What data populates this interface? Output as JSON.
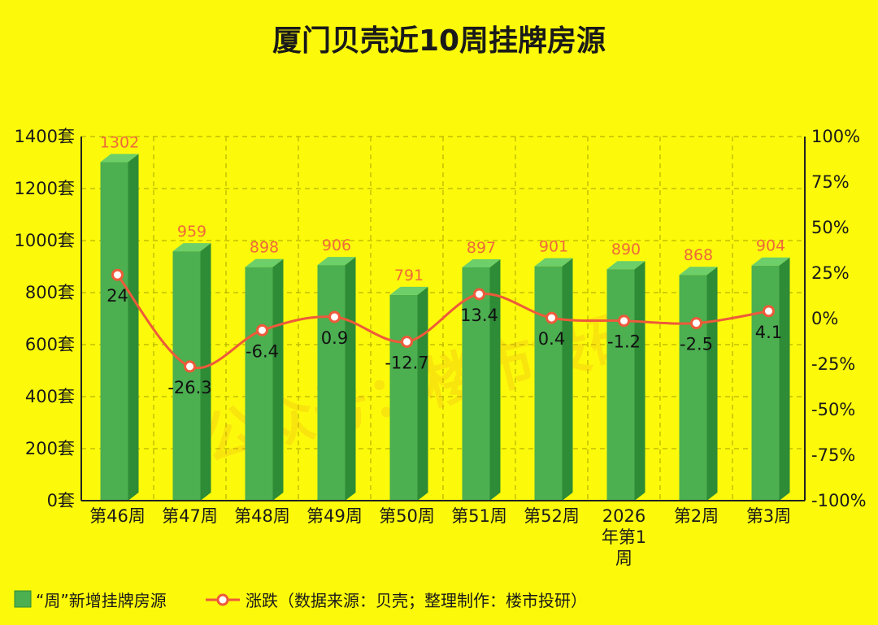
{
  "chart_data": {
    "type": "bar",
    "title": "厦门贝壳近10周挂牌房源",
    "categories": [
      "第46周",
      "第47周",
      "第48周",
      "第49周",
      "第50周",
      "第51周",
      "第52周",
      "2026年第1周",
      "第2周",
      "第3周"
    ],
    "category_lines": [
      [
        "第46周"
      ],
      [
        "第47周"
      ],
      [
        "第48周"
      ],
      [
        "第49周"
      ],
      [
        "第50周"
      ],
      [
        "第51周"
      ],
      [
        "第52周"
      ],
      [
        "2026",
        "年第1",
        "周"
      ],
      [
        "第2周"
      ],
      [
        "第3周"
      ]
    ],
    "series": [
      {
        "name": "“周”新增挂牌房源",
        "type": "bar",
        "axis": "left",
        "color": "#4caf50",
        "values": [
          1302,
          959,
          898,
          906,
          791,
          897,
          901,
          890,
          868,
          904
        ],
        "labels": [
          "1302",
          "959",
          "898",
          "906",
          "791",
          "897",
          "901",
          "890",
          "868",
          "904"
        ]
      },
      {
        "name": "涨跌（数据来源：贝壳；整理制作：楼市投研）",
        "type": "line",
        "axis": "right",
        "color": "#ee5a3a",
        "values": [
          24,
          -26.3,
          -6.4,
          0.9,
          -12.7,
          13.4,
          0.4,
          -1.2,
          -2.5,
          4.1
        ],
        "labels": [
          "24",
          "-26.3",
          "-6.4",
          "0.9",
          "-12.7",
          "13.4",
          "0.4",
          "-1.2",
          "-2.5",
          "4.1"
        ]
      }
    ],
    "y_left": {
      "min": 0,
      "max": 1400,
      "ticks": [
        0,
        200,
        400,
        600,
        800,
        1000,
        1200,
        1400
      ],
      "tick_labels": [
        "0套",
        "200套",
        "400套",
        "600套",
        "800套",
        "1000套",
        "1200套",
        "1400套"
      ]
    },
    "y_right": {
      "min": -100,
      "max": 100,
      "ticks": [
        -100,
        -75,
        -50,
        -25,
        0,
        25,
        50,
        75,
        100
      ],
      "tick_labels": [
        "-100%",
        "-75%",
        "-50%",
        "-25%",
        "0%",
        "25%",
        "50%",
        "75%",
        "100%"
      ]
    },
    "grid": true,
    "legend_position": "bottom-left",
    "watermark": "公众号：楼市投研"
  },
  "colors": {
    "background": "#fcfa0a",
    "bar_front": "#4caf50",
    "bar_side": "#2e8b36",
    "bar_top": "#6ccf6a",
    "line": "#ee5a3a",
    "value_label": "#ee6a3a"
  }
}
